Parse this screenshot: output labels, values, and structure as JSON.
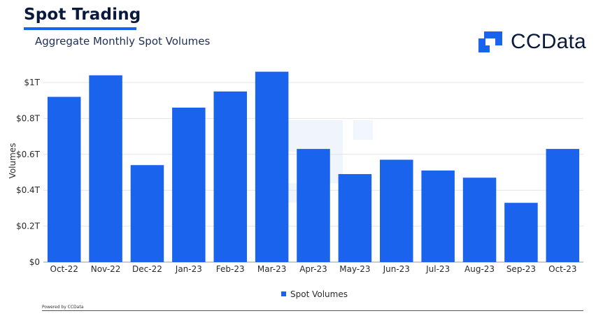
{
  "header": {
    "title": "Spot Trading",
    "subtitle": "Aggregate Monthly Spot Volumes",
    "brand": "CCData",
    "brand_icon": "ccdata-logo-icon"
  },
  "footer": {
    "credit": "Powered by CCData"
  },
  "colors": {
    "bar": "#1a63ec",
    "title": "#0b1a3c",
    "accent": "#1a63ec"
  },
  "chart_data": {
    "type": "bar",
    "categories": [
      "Oct-22",
      "Nov-22",
      "Dec-22",
      "Jan-23",
      "Feb-23",
      "Mar-23",
      "Apr-23",
      "May-23",
      "Jun-23",
      "Jul-23",
      "Aug-23",
      "Sep-23",
      "Oct-23"
    ],
    "series": [
      {
        "name": "Spot Volumes",
        "values": [
          0.92,
          1.04,
          0.54,
          0.86,
          0.95,
          1.06,
          0.63,
          0.49,
          0.57,
          0.51,
          0.47,
          0.33,
          0.63
        ]
      }
    ],
    "ylabel": "Volumes",
    "xlabel": "",
    "ylim": [
      0,
      1.0
    ],
    "yticks": [
      0,
      0.2,
      0.4,
      0.6,
      0.8,
      1.0
    ],
    "ytick_labels": [
      "$0",
      "$0.2T",
      "$0.4T",
      "$0.6T",
      "$0.8T",
      "$1T"
    ],
    "grid": true,
    "legend": "bottom-center"
  }
}
